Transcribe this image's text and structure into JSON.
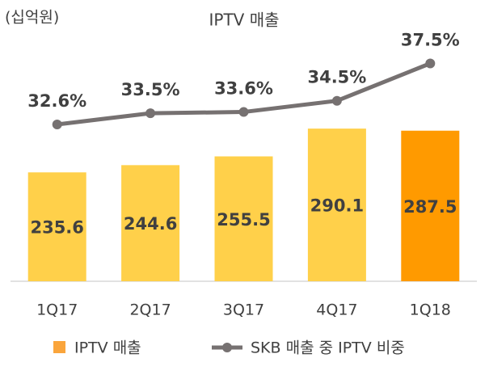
{
  "chart_data": {
    "type": "bar+line",
    "title": "IPTV 매출",
    "unit_label": "(십억원)",
    "categories": [
      "1Q17",
      "2Q17",
      "3Q17",
      "4Q17",
      "1Q18"
    ],
    "series": [
      {
        "name": "IPTV 매출",
        "type": "bar",
        "color": "#FAA53C",
        "point_colors": [
          "#FFD04A",
          "#FFD04A",
          "#FFD04A",
          "#FFD04A",
          "#FF9A00"
        ],
        "values": [
          235.6,
          244.6,
          255.5,
          290.1,
          287.5
        ]
      },
      {
        "name": "SKB 매출 중 IPTV 비중",
        "type": "line",
        "axis": "y2",
        "color": "#767171",
        "values": [
          32.6,
          33.5,
          33.6,
          34.5,
          37.5
        ],
        "value_labels": [
          "32.6%",
          "33.5%",
          "33.6%",
          "34.5%",
          "37.5%"
        ]
      }
    ],
    "ylim": [
      100,
      410
    ],
    "y2lim": [
      20,
      40
    ],
    "legend": "bottom"
  }
}
